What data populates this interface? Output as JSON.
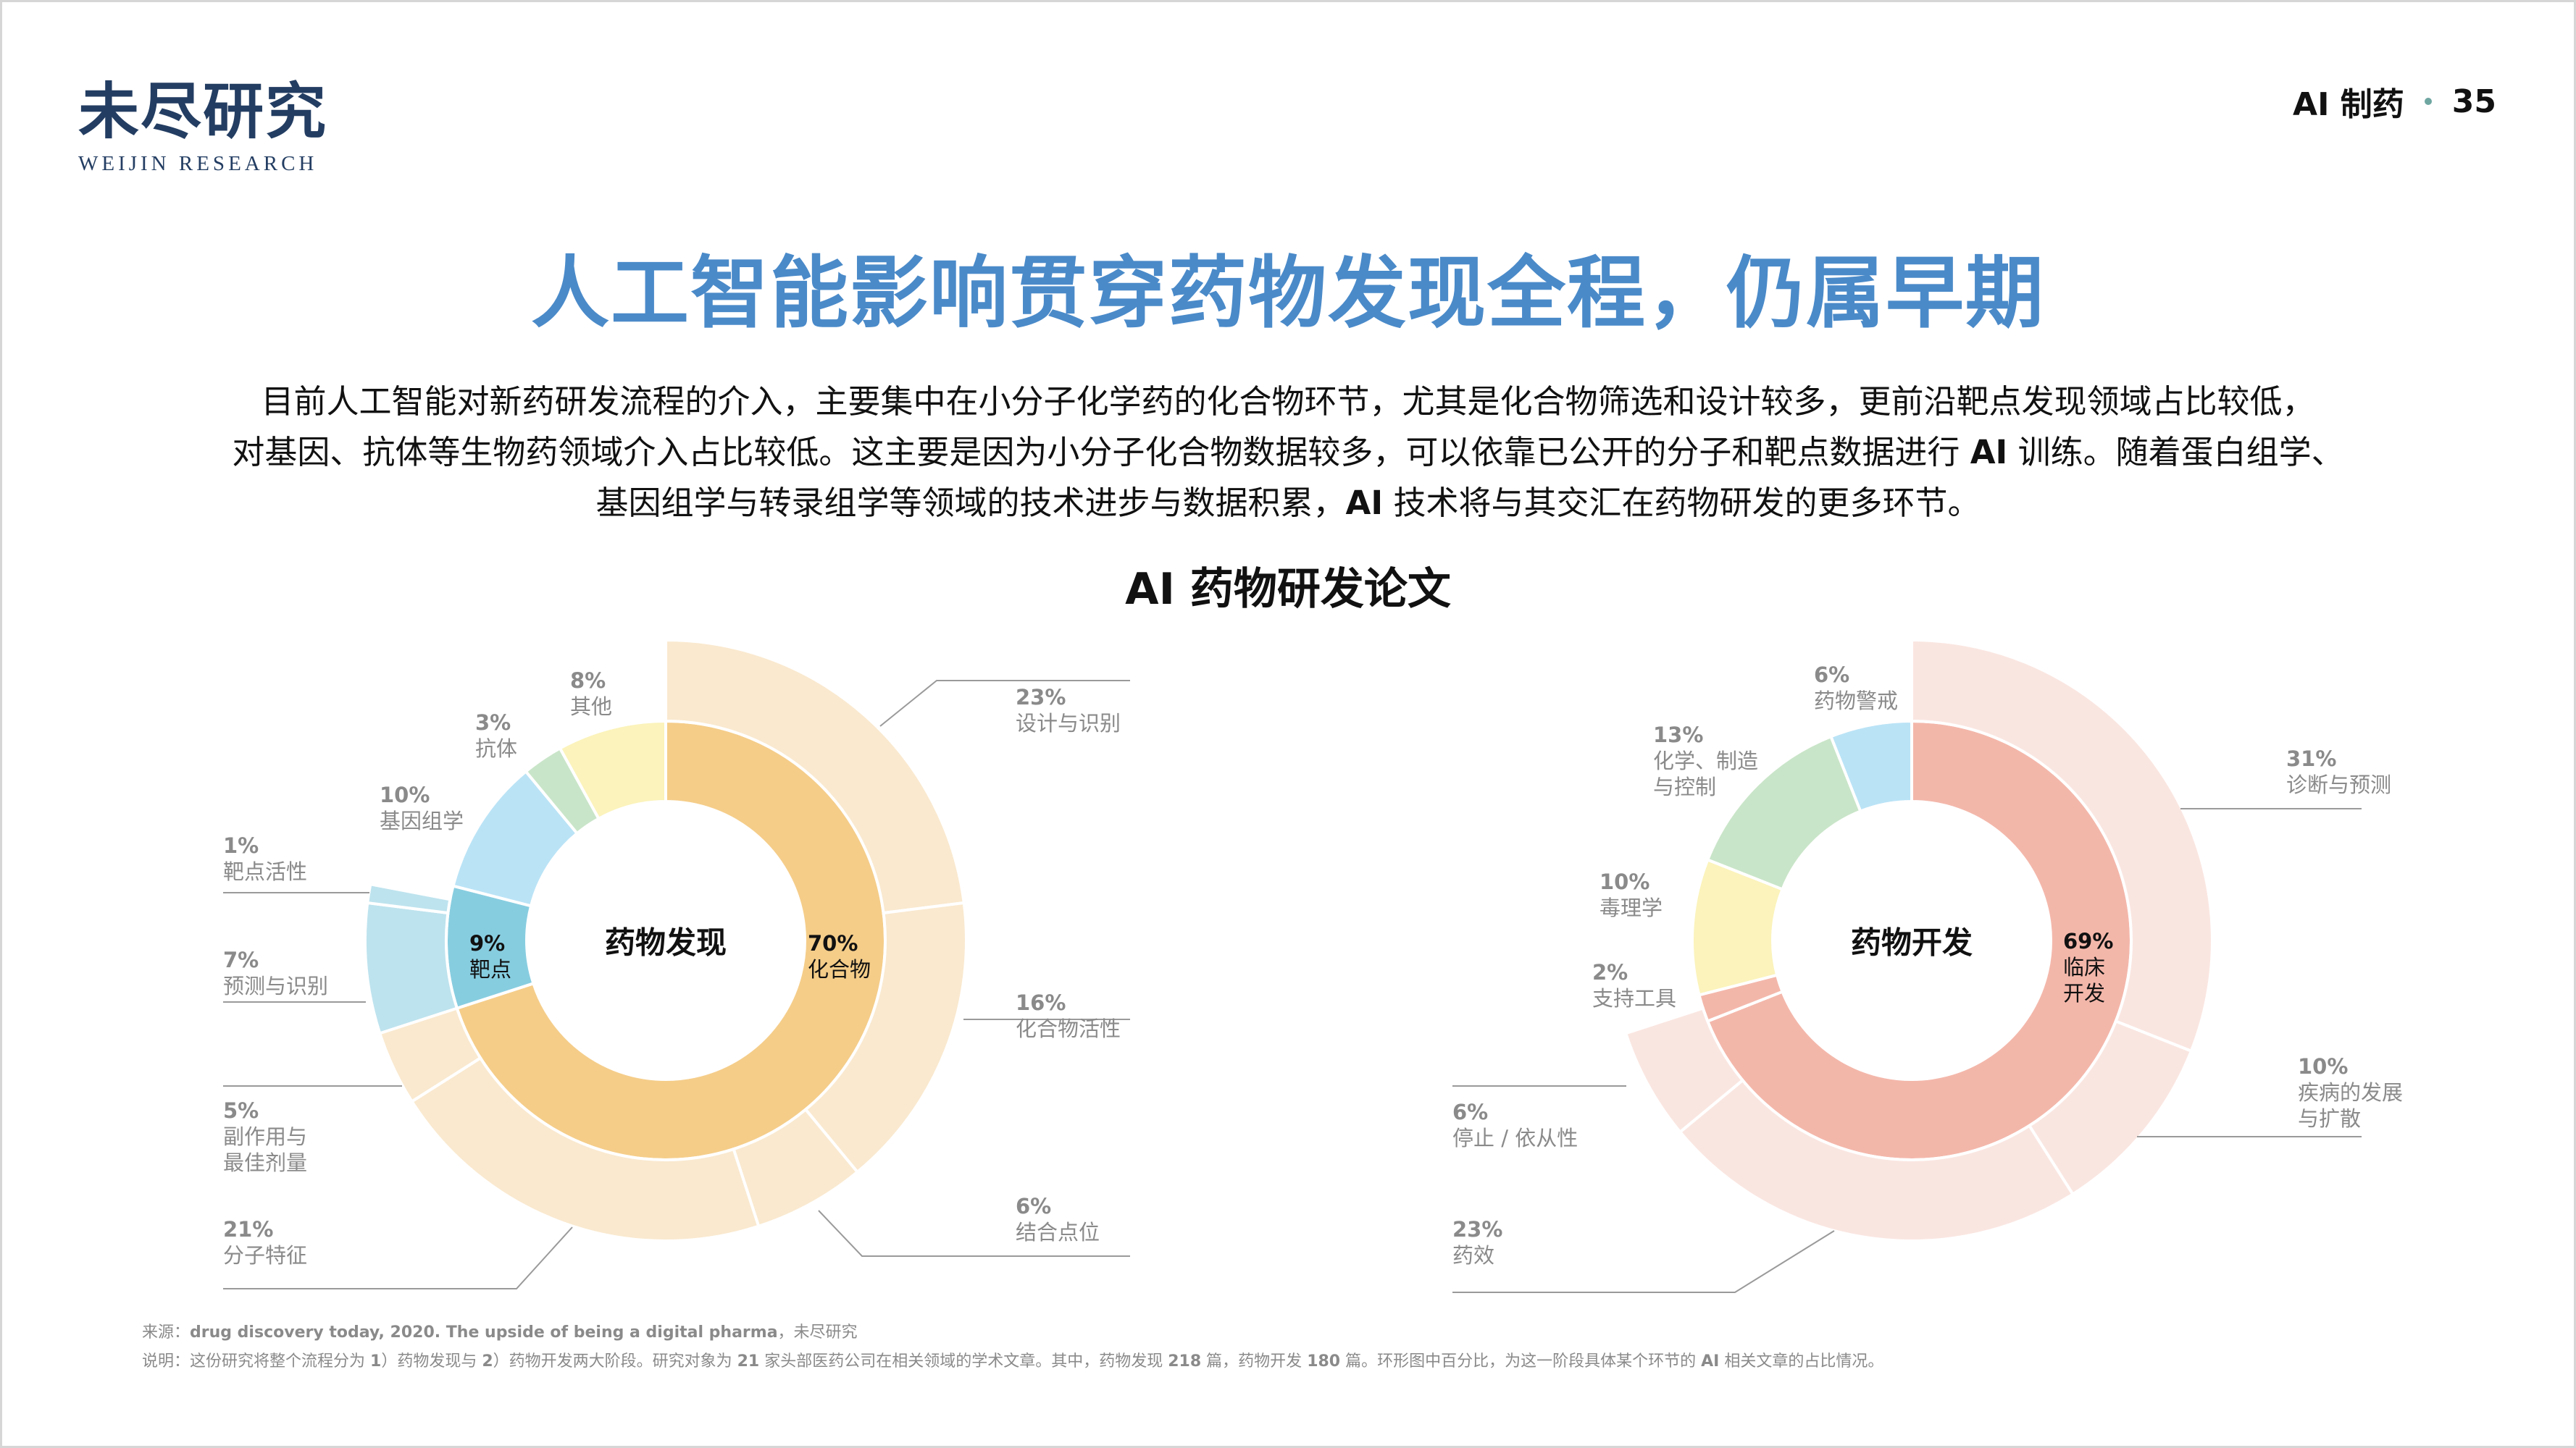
{
  "header": {
    "logo_cn": "未尽研究",
    "logo_en": "WEIJIN RESEARCH",
    "section": "AI 制药",
    "page_number": "35",
    "dot_color": "#6fa6a2"
  },
  "title": "人工智能影响贯穿药物发现全程，仍属早期",
  "title_color": "#4a8ac9",
  "intro": {
    "line1": "目前人工智能对新药研发流程的介入，主要集中在小分子化学药的化合物环节，尤其是化合物筛选和设计较多，更前沿靶点发现领域占比较低，",
    "line2a": "对基因、抗体等生物药领域介入占比较低。这主要是因为小分子化合物数据较多，可以依靠已公开的分子和靶点数据进行",
    "line2b": "AI",
    "line2c": "训练。随着蛋白组学、",
    "line3a": "基因组学与转录组学等领域的技术进步与数据积累，",
    "line3b": "AI",
    "line3c": "技术将与其交汇在药物研发的更多环节。"
  },
  "chart_title": "AI 药物研发论文",
  "chart_data": [
    {
      "type": "pie",
      "subtype": "sunburst-donut",
      "title": "药物发现",
      "inner": [
        {
          "label": "化合物",
          "value": 70,
          "color": "#f5cd89"
        },
        {
          "label": "靶点",
          "value": 9,
          "color": "#87cde0"
        },
        {
          "label": "基因组学",
          "value": 10,
          "color": "#bae3f6"
        },
        {
          "label": "抗体",
          "value": 3,
          "color": "#c9e5c9"
        },
        {
          "label": "其他",
          "value": 8,
          "color": "#fbf3bb"
        }
      ],
      "outer": [
        {
          "label": "设计与识别",
          "value": 23,
          "parent": "化合物",
          "color": "#fae9cf"
        },
        {
          "label": "化合物活性",
          "value": 16,
          "parent": "化合物",
          "color": "#fae9cf"
        },
        {
          "label": "结合点位",
          "value": 6,
          "parent": "化合物",
          "color": "#fae9cf"
        },
        {
          "label": "分子特征",
          "value": 21,
          "parent": "化合物",
          "color": "#fae9cf"
        },
        {
          "label": "副作用与最佳剂量",
          "value": 5,
          "parent": "化合物",
          "color": "#fae9cf"
        },
        {
          "label": "预测与识别",
          "value": 7,
          "parent": "靶点",
          "color": "#bde3ee"
        },
        {
          "label": "靶点活性",
          "value": 1,
          "parent": "靶点",
          "color": "#bde3ee"
        }
      ]
    },
    {
      "type": "pie",
      "subtype": "sunburst-donut",
      "title": "药物开发",
      "inner": [
        {
          "label": "临床开发",
          "value": 69,
          "color": "#f3b7aa"
        },
        {
          "label": "支持工具",
          "value": 2,
          "color": "#f3b7aa"
        },
        {
          "label": "毒理学",
          "value": 10,
          "color": "#fbf3bb"
        },
        {
          "label": "化学、制造与控制",
          "value": 13,
          "color": "#c9e5c9"
        },
        {
          "label": "药物警戒",
          "value": 6,
          "color": "#bae3f6"
        }
      ],
      "outer": [
        {
          "label": "诊断与预测",
          "value": 31,
          "parent": "临床开发",
          "color": "#fae6e1"
        },
        {
          "label": "疾病的发展与扩散",
          "value": 10,
          "parent": "临床开发",
          "color": "#fae6e1"
        },
        {
          "label": "药效",
          "value": 23,
          "parent": "临床开发",
          "color": "#fae6e1"
        },
        {
          "label": "停止 / 依从性",
          "value": 6,
          "parent": "临床开发",
          "color": "#fae6e1"
        }
      ]
    }
  ],
  "labels": {
    "left": {
      "center": "药物发现",
      "compound_pct": "70%",
      "compound": "化合物",
      "target_pct": "9%",
      "target": "靶点",
      "genomics_pct": "10%",
      "genomics": "基因组学",
      "antibody_pct": "3%",
      "antibody": "抗体",
      "other_pct": "8%",
      "other": "其他",
      "design_pct": "23%",
      "design": "设计与识别",
      "activity_pct": "16%",
      "activity": "化合物活性",
      "binding_pct": "6%",
      "binding": "结合点位",
      "molecular_pct": "21%",
      "molecular": "分子特征",
      "side_pct": "5%",
      "side1": "副作用与",
      "side2": "最佳剂量",
      "predict_pct": "7%",
      "predict": "预测与识别",
      "tactivity_pct": "1%",
      "tactivity": "靶点活性"
    },
    "right": {
      "center": "药物开发",
      "clinical_pct": "69%",
      "clinical1": "临床",
      "clinical2": "开发",
      "support_pct": "2%",
      "support": "支持工具",
      "tox_pct": "10%",
      "tox": "毒理学",
      "cmc_pct": "13%",
      "cmc1": "化学、制造",
      "cmc2": "与控制",
      "pv_pct": "6%",
      "pv": "药物警戒",
      "diag_pct": "31%",
      "diag": "诊断与预测",
      "disease_pct": "10%",
      "disease1": "疾病的发展",
      "disease2": "与扩散",
      "efficacy_pct": "23%",
      "efficacy": "药效",
      "stop_pct": "6%",
      "stop": "停止 / 依从性"
    }
  },
  "footer": {
    "source_prefix": "来源：",
    "source_bold": "drug discovery today, 2020. The upside of being a digital pharma",
    "source_suffix": "，未尽研究",
    "note_a": "说明：这份研究将整个流程分为 ",
    "note_b": "1",
    "note_c": "）药物发现与 ",
    "note_d": "2",
    "note_e": "）药物开发两大阶段。研究对象为 ",
    "note_f": "21",
    "note_g": " 家头部医药公司在相关领域的学术文章。其中，药物发现 ",
    "note_h": "218",
    "note_i": " 篇，药物开发 ",
    "note_j": "180",
    "note_k": " 篇。环形图中百分比，为这一阶段具体某个环节的 ",
    "note_l": "AI",
    "note_m": " 相关文章的占比情况。"
  }
}
